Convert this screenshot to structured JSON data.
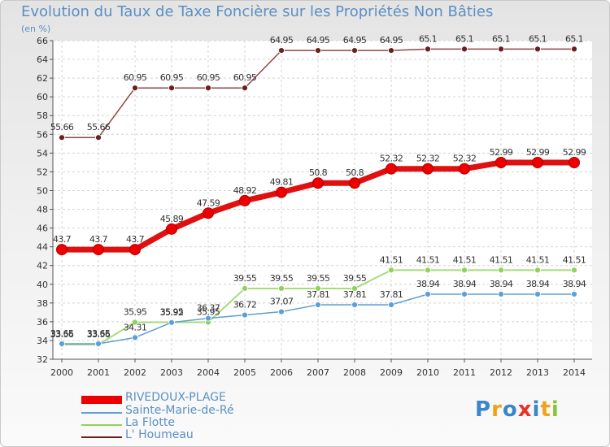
{
  "title": "Evolution du Taux de Taxe Foncière sur les Propriétés Non Bâties",
  "unit": "(en %)",
  "logo": {
    "letters": [
      "P",
      "r",
      "o",
      "x",
      "i",
      "t",
      "i"
    ],
    "colors": [
      "#3a86c8",
      "#f0a21b",
      "#3a86c8",
      "#e7332b",
      "#3a86c8",
      "#f0a21b",
      "#8bc53f"
    ]
  },
  "chart_data": {
    "type": "line",
    "title": "Evolution du Taux de Taxe Foncière sur les Propriétés Non Bâties",
    "ylabel": "(en %)",
    "x": [
      "2000",
      "2001",
      "2002",
      "2003",
      "2004",
      "2005",
      "2006",
      "2007",
      "2008",
      "2009",
      "2010",
      "2011",
      "2012",
      "2013",
      "2014"
    ],
    "ylim": [
      32,
      66
    ],
    "yticks": [
      32,
      34,
      36,
      38,
      40,
      42,
      44,
      46,
      48,
      50,
      52,
      54,
      56,
      58,
      60,
      62,
      64,
      66
    ],
    "grid": true,
    "legend_position": "bottom-left",
    "series": [
      {
        "name": "RIVEDOUX-PLAGE",
        "color": "#ee0000",
        "line_color": "#e01010",
        "values": [
          43.7,
          43.7,
          43.7,
          45.89,
          47.59,
          48.92,
          49.81,
          50.8,
          50.8,
          52.32,
          52.32,
          52.32,
          52.99,
          52.99,
          52.99
        ],
        "labels": [
          "43.7",
          "43.7",
          "43.7",
          "45.89",
          "47.59",
          "48.92",
          "49.81",
          "50.8",
          "50.8",
          "52.32",
          "52.32",
          "52.32",
          "52.99",
          "52.99",
          "52.99"
        ]
      },
      {
        "name": "Sainte-Marie-de-Ré",
        "color": "#5e9fd6",
        "line_color": "#5e9fd6",
        "values": [
          33.65,
          33.65,
          34.31,
          35.92,
          36.37,
          36.72,
          37.07,
          37.81,
          37.81,
          37.81,
          38.94,
          38.94,
          38.94,
          38.94,
          38.94
        ],
        "labels": [
          "33.65",
          "33.65",
          "34.31",
          "35.92",
          "36.37",
          "36.72",
          "37.07",
          "37.81",
          "37.81",
          "37.81",
          "38.94",
          "38.94",
          "38.94",
          "38.94",
          "38.94"
        ]
      },
      {
        "name": "La Flotte",
        "color": "#8fd25a",
        "line_color": "#a6dc7a",
        "values": [
          33.56,
          33.56,
          35.95,
          35.95,
          35.95,
          39.55,
          39.55,
          39.55,
          39.55,
          41.51,
          41.51,
          41.51,
          41.51,
          41.51,
          41.51
        ],
        "labels": [
          "33.56",
          "33.56",
          "35.95",
          "35.95",
          "35.95",
          "39.55",
          "39.55",
          "39.55",
          "39.55",
          "41.51",
          "41.51",
          "41.51",
          "41.51",
          "41.51",
          "41.51"
        ]
      },
      {
        "name": "L' Houmeau",
        "color": "#6b1e1e",
        "line_color": "#8e4646",
        "values": [
          55.66,
          55.66,
          60.95,
          60.95,
          60.95,
          60.95,
          64.95,
          64.95,
          64.95,
          64.95,
          65.1,
          65.1,
          65.1,
          65.1,
          65.1
        ],
        "labels": [
          "55.66",
          "55.66",
          "60.95",
          "60.95",
          "60.95",
          "60.95",
          "64.95",
          "64.95",
          "64.95",
          "64.95",
          "65.1",
          "65.1",
          "65.1",
          "65.1",
          "65.1"
        ]
      }
    ]
  }
}
